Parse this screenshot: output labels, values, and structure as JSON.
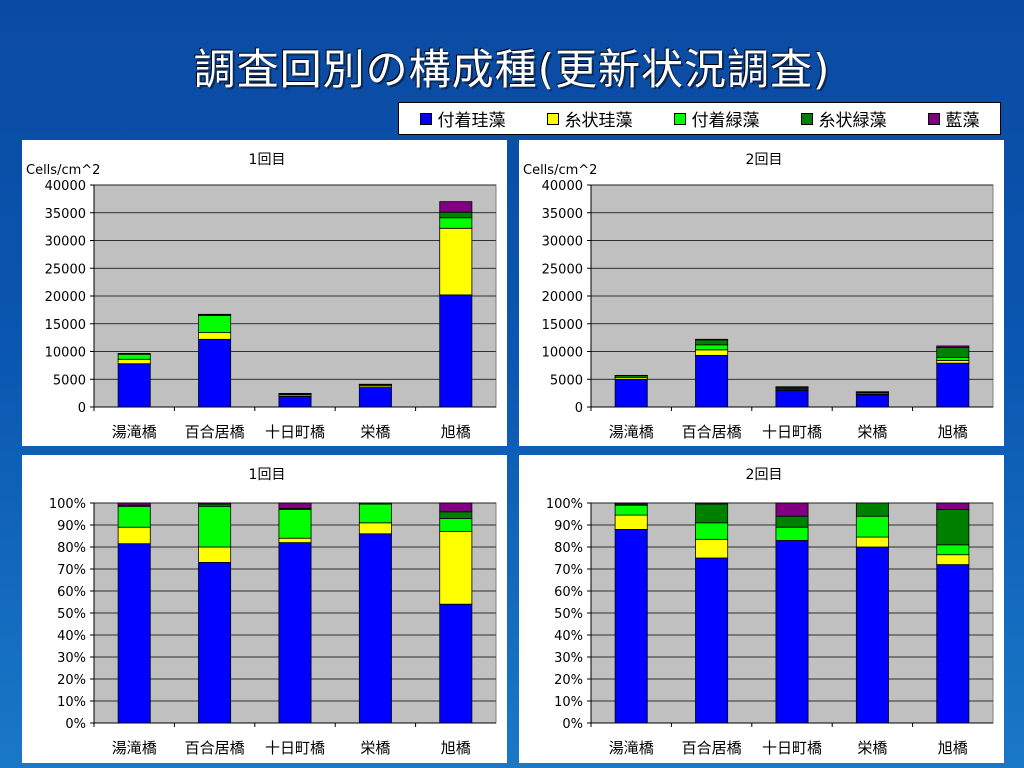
{
  "page": {
    "title": "調査回別の構成種(更新状況調査)"
  },
  "legend": [
    {
      "label": "付着珪藻",
      "color": "#0000ff"
    },
    {
      "label": "糸状珪藻",
      "color": "#ffff00"
    },
    {
      "label": "付着緑藻",
      "color": "#00ff00"
    },
    {
      "label": "糸状緑藻",
      "color": "#008000"
    },
    {
      "label": "藍藻",
      "color": "#800080"
    }
  ],
  "chart_data": [
    {
      "type": "bar",
      "stacked": true,
      "title": "1回目",
      "ylabel": "Cells/cm^2",
      "ylim": [
        0,
        40000
      ],
      "yticks": [
        0,
        5000,
        10000,
        15000,
        20000,
        25000,
        30000,
        35000,
        40000
      ],
      "ytick_labels": [
        "0",
        "5000",
        "10000",
        "15000",
        "20000",
        "25000",
        "30000",
        "35000",
        "40000"
      ],
      "categories": [
        "湯滝橋",
        "百合居橋",
        "十日町橋",
        "栄橋",
        "旭橋"
      ],
      "grid": true,
      "series": [
        {
          "name": "付着珪藻",
          "values": [
            7800,
            12200,
            1900,
            3500,
            20200
          ]
        },
        {
          "name": "糸状珪藻",
          "values": [
            800,
            1200,
            50,
            300,
            12000
          ]
        },
        {
          "name": "付着緑藻",
          "values": [
            900,
            3100,
            300,
            200,
            1900
          ]
        },
        {
          "name": "糸状緑藻",
          "values": [
            50,
            150,
            50,
            50,
            1000
          ]
        },
        {
          "name": "藍藻",
          "values": [
            100,
            50,
            150,
            50,
            1900
          ]
        }
      ]
    },
    {
      "type": "bar",
      "stacked": true,
      "title": "2回目",
      "ylabel": "Cells/cm^2",
      "ylim": [
        0,
        40000
      ],
      "yticks": [
        0,
        5000,
        10000,
        15000,
        20000,
        25000,
        30000,
        35000,
        40000
      ],
      "ytick_labels": [
        "0",
        "5000",
        "10000",
        "15000",
        "20000",
        "25000",
        "30000",
        "35000",
        "40000"
      ],
      "categories": [
        "湯滝橋",
        "百合居橋",
        "十日町橋",
        "栄橋",
        "旭橋"
      ],
      "grid": true,
      "series": [
        {
          "name": "付着珪藻",
          "values": [
            5000,
            9300,
            3000,
            2200,
            7900
          ]
        },
        {
          "name": "糸状珪藻",
          "values": [
            350,
            1000,
            50,
            100,
            500
          ]
        },
        {
          "name": "付着緑藻",
          "values": [
            250,
            900,
            200,
            250,
            500
          ]
        },
        {
          "name": "糸状緑藻",
          "values": [
            50,
            900,
            200,
            150,
            1800
          ]
        },
        {
          "name": "藍藻",
          "values": [
            50,
            100,
            200,
            50,
            300
          ]
        }
      ]
    },
    {
      "type": "bar",
      "stacked": true,
      "percent": true,
      "title": "1回目",
      "ylabel": "",
      "ylim": [
        0,
        100
      ],
      "yticks": [
        0,
        10,
        20,
        30,
        40,
        50,
        60,
        70,
        80,
        90,
        100
      ],
      "ytick_labels": [
        "0%",
        "10%",
        "20%",
        "30%",
        "40%",
        "50%",
        "60%",
        "70%",
        "80%",
        "90%",
        "100%"
      ],
      "categories": [
        "湯滝橋",
        "百合居橋",
        "十日町橋",
        "栄橋",
        "旭橋"
      ],
      "grid": true,
      "series": [
        {
          "name": "付着珪藻",
          "values": [
            81.5,
            73,
            82,
            86,
            54
          ]
        },
        {
          "name": "糸状珪藻",
          "values": [
            7.5,
            7,
            2,
            5,
            33
          ]
        },
        {
          "name": "付着緑藻",
          "values": [
            9.5,
            18.5,
            13,
            8.5,
            6
          ]
        },
        {
          "name": "糸状緑藻",
          "values": [
            0.5,
            1,
            0.5,
            0.5,
            3
          ]
        },
        {
          "name": "藍藻",
          "values": [
            1,
            0.5,
            2.5,
            0,
            4
          ]
        }
      ]
    },
    {
      "type": "bar",
      "stacked": true,
      "percent": true,
      "title": "2回目",
      "ylabel": "",
      "ylim": [
        0,
        100
      ],
      "yticks": [
        0,
        10,
        20,
        30,
        40,
        50,
        60,
        70,
        80,
        90,
        100
      ],
      "ytick_labels": [
        "0%",
        "10%",
        "20%",
        "30%",
        "40%",
        "50%",
        "60%",
        "70%",
        "80%",
        "90%",
        "100%"
      ],
      "categories": [
        "湯滝橋",
        "百合居橋",
        "十日町橋",
        "栄橋",
        "旭橋"
      ],
      "grid": true,
      "series": [
        {
          "name": "付着珪藻",
          "values": [
            88,
            75,
            83,
            80,
            72
          ]
        },
        {
          "name": "糸状珪藻",
          "values": [
            6.5,
            8.5,
            0,
            4.5,
            4.5
          ]
        },
        {
          "name": "付着緑藻",
          "values": [
            4.5,
            7.5,
            6,
            9.5,
            4.5
          ]
        },
        {
          "name": "糸状緑藻",
          "values": [
            0.5,
            8.5,
            5,
            6,
            16
          ]
        },
        {
          "name": "藍藻",
          "values": [
            0.5,
            0.5,
            6,
            0,
            3
          ]
        }
      ]
    }
  ]
}
